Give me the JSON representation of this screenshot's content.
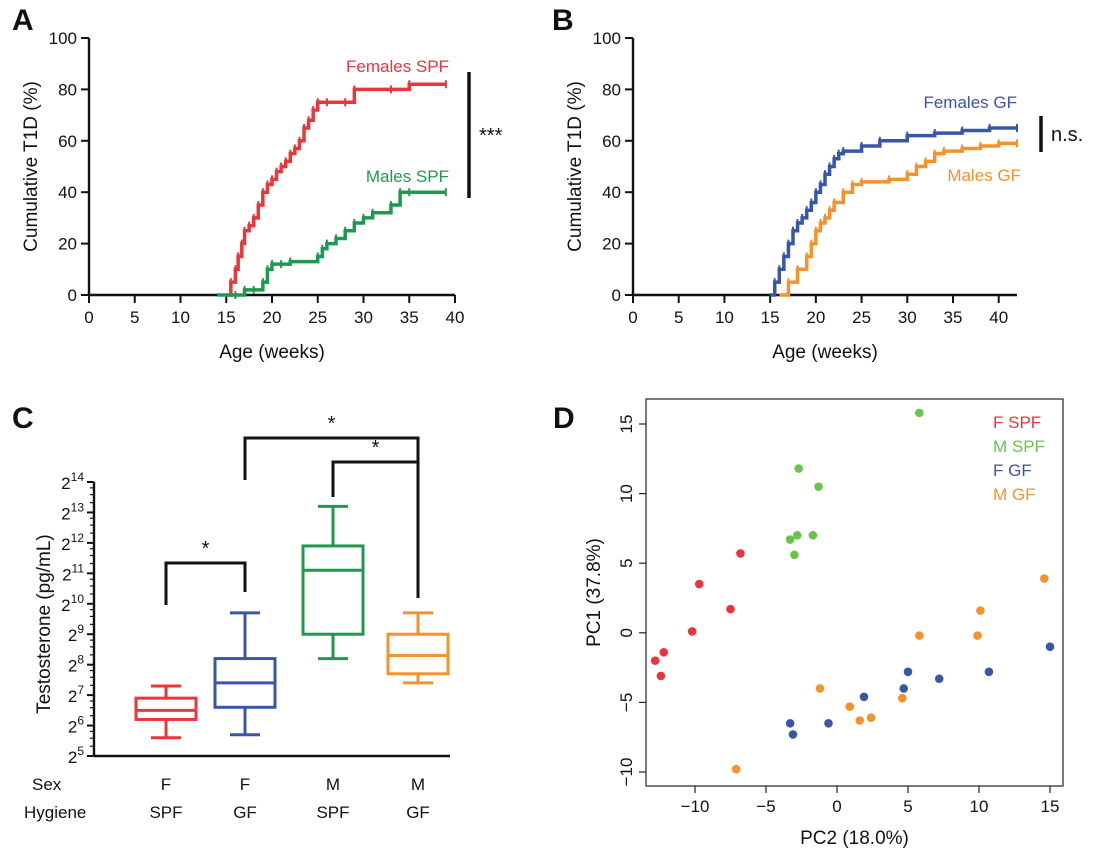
{
  "colors": {
    "females_spf": "#e8373b",
    "males_spf": "#1f9950",
    "females_gf": "#3956a7",
    "males_gf": "#f4922b",
    "m_spf_points": "#6cc34a"
  },
  "panels": {
    "A": {
      "letter": "A",
      "annotation": "***"
    },
    "B": {
      "letter": "B",
      "annotation": "n.s."
    },
    "C": {
      "letter": "C",
      "annotation": "*"
    },
    "D": {
      "letter": "D"
    }
  },
  "chart_data": [
    {
      "panel": "A",
      "type": "line",
      "step": true,
      "xlabel": "Age (weeks)",
      "ylabel": "Cumulative T1D (%)",
      "xlim": [
        0,
        40
      ],
      "ylim": [
        0,
        100
      ],
      "xticks": [
        0,
        5,
        10,
        15,
        20,
        25,
        30,
        35,
        40
      ],
      "yticks": [
        0,
        20,
        40,
        60,
        80,
        100
      ],
      "series": [
        {
          "name": "Females SPF",
          "color": "#e8373b",
          "x": [
            15.0,
            15.5,
            16.0,
            16.3,
            16.7,
            17.0,
            17.5,
            18.0,
            18.5,
            19.0,
            19.5,
            20.0,
            20.5,
            21.0,
            21.5,
            22.0,
            22.5,
            23.0,
            23.5,
            24.0,
            24.5,
            25.0,
            26.0,
            28.0,
            29.0,
            33.0,
            35.0,
            39.0
          ],
          "y": [
            0,
            5,
            10,
            15,
            20,
            25,
            27,
            30,
            35,
            40,
            43,
            45,
            48,
            50,
            52,
            55,
            57,
            60,
            65,
            68,
            72,
            75,
            75,
            75,
            80,
            80,
            82,
            82
          ]
        },
        {
          "name": "Males SPF",
          "color": "#1f9950",
          "x": [
            14.0,
            16.0,
            17.0,
            18.0,
            19.0,
            19.5,
            20.0,
            21.0,
            22.0,
            25.0,
            25.5,
            26.0,
            27.0,
            28.0,
            29.0,
            30.0,
            31.0,
            33.0,
            34.0,
            35.0,
            39.0
          ],
          "y": [
            0,
            0,
            2,
            2,
            5,
            10,
            12,
            12,
            13,
            15,
            18,
            20,
            22,
            25,
            28,
            30,
            32,
            35,
            40,
            40,
            40
          ]
        }
      ]
    },
    {
      "panel": "B",
      "type": "line",
      "step": true,
      "xlabel": "Age (weeks)",
      "ylabel": "Cumulative T1D (%)",
      "xlim": [
        0,
        42
      ],
      "ylim": [
        0,
        100
      ],
      "xticks": [
        0,
        5,
        10,
        15,
        20,
        25,
        30,
        35,
        40
      ],
      "yticks": [
        0,
        20,
        40,
        60,
        80,
        100
      ],
      "series": [
        {
          "name": "Females GF",
          "color": "#3956a7",
          "x": [
            15.0,
            15.5,
            16.0,
            16.5,
            17.0,
            17.5,
            18.0,
            18.5,
            19.0,
            19.5,
            20.0,
            20.5,
            21.0,
            21.5,
            22.0,
            22.5,
            23.0,
            25.0,
            27.0,
            30.0,
            33.0,
            36.0,
            39.0,
            42.0
          ],
          "y": [
            0,
            5,
            10,
            15,
            20,
            25,
            28,
            30,
            33,
            36,
            40,
            43,
            47,
            50,
            53,
            55,
            56,
            58,
            60,
            62,
            63,
            64,
            65,
            65
          ]
        },
        {
          "name": "Males GF",
          "color": "#f4922b",
          "x": [
            16.0,
            17.0,
            18.0,
            19.0,
            19.5,
            20.0,
            20.5,
            21.0,
            21.5,
            22.0,
            23.0,
            24.0,
            25.0,
            28.0,
            30.0,
            31.0,
            32.0,
            33.0,
            34.0,
            36.0,
            38.0,
            40.0,
            42.0
          ],
          "y": [
            0,
            5,
            10,
            15,
            20,
            25,
            28,
            30,
            33,
            36,
            40,
            43,
            44,
            45,
            47,
            50,
            52,
            55,
            56,
            57,
            58,
            59,
            59
          ]
        }
      ]
    },
    {
      "panel": "C",
      "type": "box",
      "ylabel": "Testosterone (pg/mL)",
      "ylim_log2": [
        5,
        14
      ],
      "yticks": [
        {
          "base": "2",
          "exp": "5"
        },
        {
          "base": "2",
          "exp": "6"
        },
        {
          "base": "2",
          "exp": "7"
        },
        {
          "base": "2",
          "exp": "8"
        },
        {
          "base": "2",
          "exp": "9"
        },
        {
          "base": "2",
          "exp": "10"
        },
        {
          "base": "2",
          "exp": "11"
        },
        {
          "base": "2",
          "exp": "12"
        },
        {
          "base": "2",
          "exp": "13"
        },
        {
          "base": "2",
          "exp": "14"
        }
      ],
      "row_labels": [
        "Sex",
        "Hygiene"
      ],
      "groups": [
        {
          "sex": "F",
          "hygiene": "SPF",
          "color": "#e8373b",
          "whisker_low": 5.6,
          "q1": 6.2,
          "median": 6.5,
          "q3": 6.9,
          "whisker_high": 7.3
        },
        {
          "sex": "F",
          "hygiene": "GF",
          "color": "#3956a7",
          "whisker_low": 5.7,
          "q1": 6.6,
          "median": 7.4,
          "q3": 8.2,
          "whisker_high": 9.7
        },
        {
          "sex": "M",
          "hygiene": "SPF",
          "color": "#1f9950",
          "whisker_low": 8.2,
          "q1": 9.0,
          "median": 11.1,
          "q3": 11.9,
          "whisker_high": 13.2
        },
        {
          "sex": "M",
          "hygiene": "GF",
          "color": "#f4922b",
          "whisker_low": 7.4,
          "q1": 7.7,
          "median": 8.3,
          "q3": 9.0,
          "whisker_high": 9.7
        }
      ],
      "significance": [
        {
          "from": 0,
          "to": 1,
          "label": "*"
        },
        {
          "from": 2,
          "to": 3,
          "label": "*"
        },
        {
          "from": 1,
          "to": 3,
          "label": "*"
        }
      ]
    },
    {
      "panel": "D",
      "type": "scatter",
      "xlabel": "PC2 (18.0%)",
      "ylabel": "PC1 (37.8%)",
      "xlim": [
        -14,
        16
      ],
      "ylim": [
        -11,
        17
      ],
      "xticks": [
        -10,
        -5,
        0,
        5,
        10,
        15
      ],
      "xtick_labels": [
        "−10",
        "−5",
        "0",
        "5",
        "10",
        "15"
      ],
      "yticks": [
        -10,
        -5,
        0,
        5,
        10,
        15
      ],
      "ytick_labels": [
        "−10",
        "−5",
        "0",
        "5",
        "10",
        "15"
      ],
      "legend_position": "top-right",
      "series": [
        {
          "name": "F SPF",
          "color": "#e8373b",
          "points": [
            [
              -6.8,
              5.7
            ],
            [
              -9.7,
              3.5
            ],
            [
              -7.5,
              1.7
            ],
            [
              -10.2,
              0.1
            ],
            [
              -12.8,
              -2.0
            ],
            [
              -12.2,
              -1.4
            ],
            [
              -12.4,
              -3.1
            ]
          ]
        },
        {
          "name": "M SPF",
          "color": "#6cc34a",
          "points": [
            [
              5.8,
              15.8
            ],
            [
              -2.7,
              11.8
            ],
            [
              -1.3,
              10.5
            ],
            [
              -3.3,
              6.7
            ],
            [
              -2.8,
              7.0
            ],
            [
              -1.7,
              7.0
            ],
            [
              -3.0,
              5.6
            ]
          ]
        },
        {
          "name": "F GF",
          "color": "#3956a7",
          "points": [
            [
              -3.3,
              -6.5
            ],
            [
              -3.1,
              -7.3
            ],
            [
              -0.6,
              -6.5
            ],
            [
              1.9,
              -4.6
            ],
            [
              4.7,
              -4.0
            ],
            [
              5.0,
              -2.8
            ],
            [
              7.2,
              -3.3
            ],
            [
              10.7,
              -2.8
            ],
            [
              15.0,
              -1.0
            ]
          ]
        },
        {
          "name": "M GF",
          "color": "#f4922b",
          "points": [
            [
              -7.1,
              -9.8
            ],
            [
              -1.2,
              -4.0
            ],
            [
              0.9,
              -5.3
            ],
            [
              1.6,
              -6.3
            ],
            [
              2.4,
              -6.1
            ],
            [
              4.6,
              -4.7
            ],
            [
              5.8,
              -0.2
            ],
            [
              9.9,
              -0.2
            ],
            [
              10.1,
              1.6
            ],
            [
              14.6,
              3.9
            ]
          ]
        }
      ]
    }
  ]
}
